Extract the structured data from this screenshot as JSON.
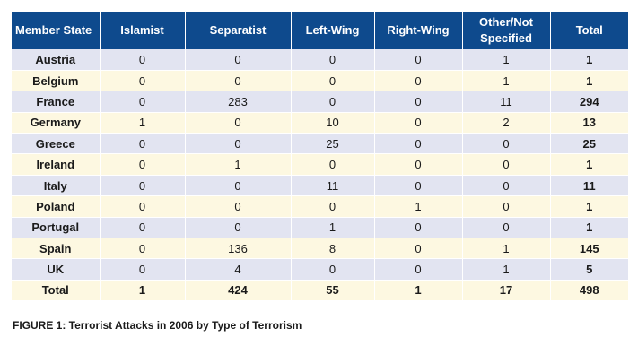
{
  "table": {
    "headers": [
      "Member State",
      "Islamist",
      "Separatist",
      "Left-Wing",
      "Right-Wing",
      "Other/Not Specified",
      "Total"
    ],
    "rows": [
      [
        "Austria",
        "0",
        "0",
        "0",
        "0",
        "1",
        "1"
      ],
      [
        "Belgium",
        "0",
        "0",
        "0",
        "0",
        "1",
        "1"
      ],
      [
        "France",
        "0",
        "283",
        "0",
        "0",
        "11",
        "294"
      ],
      [
        "Germany",
        "1",
        "0",
        "10",
        "0",
        "2",
        "13"
      ],
      [
        "Greece",
        "0",
        "0",
        "25",
        "0",
        "0",
        "25"
      ],
      [
        "Ireland",
        "0",
        "1",
        "0",
        "0",
        "0",
        "1"
      ],
      [
        "Italy",
        "0",
        "0",
        "11",
        "0",
        "0",
        "11"
      ],
      [
        "Poland",
        "0",
        "0",
        "0",
        "1",
        "0",
        "1"
      ],
      [
        "Portugal",
        "0",
        "0",
        "1",
        "0",
        "0",
        "1"
      ],
      [
        "Spain",
        "0",
        "136",
        "8",
        "0",
        "1",
        "145"
      ],
      [
        "UK",
        "0",
        "4",
        "0",
        "0",
        "1",
        "5"
      ],
      [
        "Total",
        "1",
        "424",
        "55",
        "1",
        "17",
        "498"
      ]
    ]
  },
  "caption": "FIGURE 1: Terrorist Attacks in 2006 by Type of Terrorism",
  "colors": {
    "header_bg": "#0e4a8d",
    "row_odd": "#e2e4f1",
    "row_even": "#fdf8e1"
  }
}
